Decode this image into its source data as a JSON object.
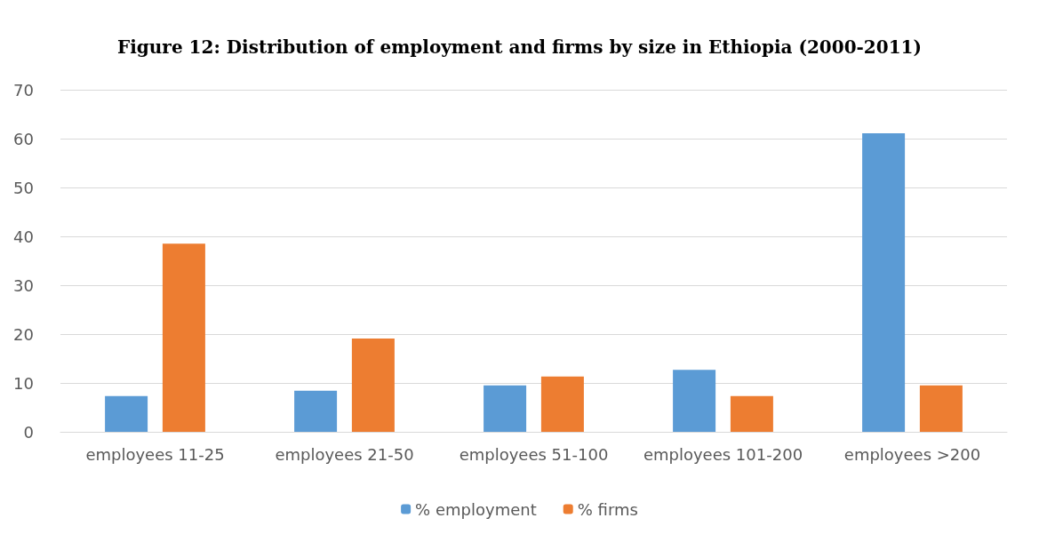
{
  "chart_data": {
    "type": "bar",
    "title": "Figure 12: Distribution of employment and firms by size in Ethiopia (2000-2011)",
    "categories": [
      "employees 11-25",
      "employees 21-50",
      "employees 51-100",
      "employees 101-200",
      "employees >200"
    ],
    "series": [
      {
        "name": "% employment",
        "color": "#5b9bd5",
        "values": [
          7.3,
          8.4,
          9.5,
          12.7,
          61.1
        ]
      },
      {
        "name": "% firms",
        "color": "#ed7d31",
        "values": [
          38.5,
          19.1,
          11.3,
          7.3,
          9.5
        ]
      }
    ],
    "ylim": [
      0,
      70
    ],
    "yticks": [
      0,
      10,
      20,
      30,
      40,
      50,
      60,
      70
    ],
    "grid": "y",
    "legend": "bottom"
  }
}
